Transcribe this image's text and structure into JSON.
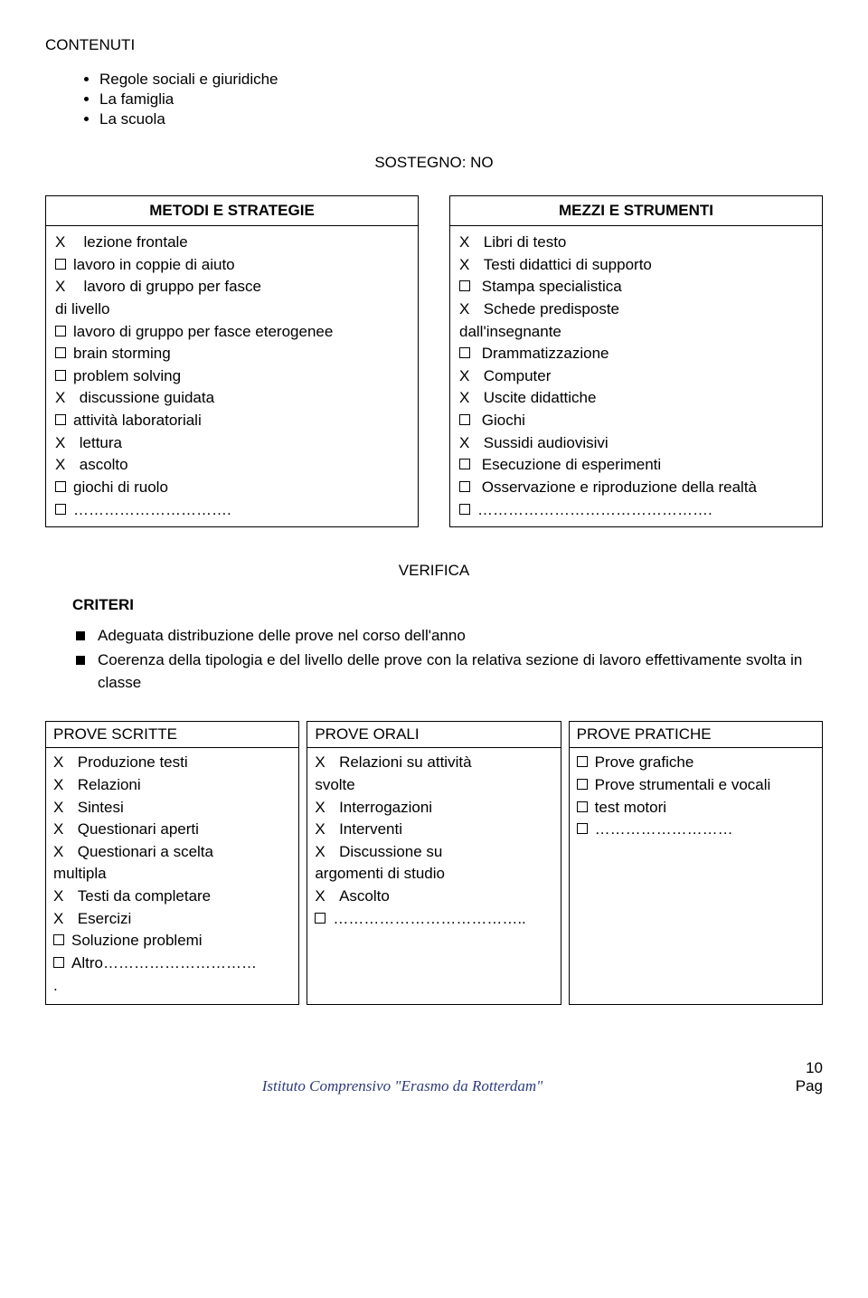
{
  "heading": "CONTENUTI",
  "bullets": [
    "Regole sociali e giuridiche",
    "La famiglia",
    "La scuola"
  ],
  "sostegno": "SOSTEGNO: NO",
  "leftBox": {
    "header": "METODI E STRATEGIE",
    "items": [
      {
        "mark": "X",
        "text": "  lezione frontale"
      },
      {
        "mark": "sq",
        "text": "lavoro in coppie di aiuto"
      },
      {
        "mark": "X",
        "text": "  lavoro di gruppo per fasce"
      },
      {
        "mark": "",
        "text": "di livello"
      },
      {
        "mark": "sq",
        "text": "lavoro di gruppo per fasce eterogenee"
      },
      {
        "mark": "sq",
        "text": "brain storming"
      },
      {
        "mark": "sq",
        "text": "problem solving"
      },
      {
        "mark": "X",
        "text": " discussione guidata"
      },
      {
        "mark": "sq",
        "text": "attività laboratoriali"
      },
      {
        "mark": "X",
        "text": " lettura"
      },
      {
        "mark": "X",
        "text": " ascolto"
      },
      {
        "mark": "sq",
        "text": "giochi di ruolo"
      },
      {
        "mark": "sq",
        "text": "…………………………."
      }
    ]
  },
  "rightBox": {
    "header": "MEZZI E STRUMENTI",
    "items": [
      {
        "mark": "X",
        "text": " Libri di testo"
      },
      {
        "mark": "X",
        "text": " Testi didattici di supporto"
      },
      {
        "mark": "sq",
        "text": " Stampa specialistica"
      },
      {
        "mark": "X",
        "text": " Schede predisposte"
      },
      {
        "mark": "",
        "text": "dall'insegnante"
      },
      {
        "mark": "sq",
        "text": " Drammatizzazione"
      },
      {
        "mark": "X",
        "text": " Computer"
      },
      {
        "mark": "X",
        "text": " Uscite didattiche"
      },
      {
        "mark": "sq",
        "text": " Giochi"
      },
      {
        "mark": "X",
        "text": " Sussidi audiovisivi"
      },
      {
        "mark": "sq",
        "text": " Esecuzione di esperimenti"
      },
      {
        "mark": "sq",
        "text": " Osservazione e riproduzione della realtà"
      },
      {
        "mark": "sq",
        "text": "………………………………………."
      }
    ]
  },
  "verifica": "VERIFICA",
  "criteriLabel": "CRITERI",
  "criteri": [
    "Adeguata distribuzione delle prove nel corso dell'anno",
    "Coerenza della tipologia e del livello delle prove con la relativa sezione di lavoro effettivamente svolta in classe"
  ],
  "col1": {
    "header": "PROVE SCRITTE",
    "items": [
      {
        "mark": "X",
        "text": " Produzione testi"
      },
      {
        "mark": "X",
        "text": " Relazioni"
      },
      {
        "mark": "X",
        "text": " Sintesi"
      },
      {
        "mark": "X",
        "text": " Questionari aperti"
      },
      {
        "mark": "X",
        "text": " Questionari a scelta"
      },
      {
        "mark": "",
        "text": "multipla"
      },
      {
        "mark": "X",
        "text": " Testi da completare"
      },
      {
        "mark": "X",
        "text": " Esercizi"
      },
      {
        "mark": "sq",
        "text": "Soluzione problemi"
      },
      {
        "mark": "sq",
        "text": "Altro…………………………"
      },
      {
        "mark": "",
        "text": "."
      }
    ]
  },
  "col2": {
    "header": "PROVE ORALI",
    "items": [
      {
        "mark": "X",
        "text": " Relazioni su attività"
      },
      {
        "mark": "",
        "text": "svolte"
      },
      {
        "mark": "X",
        "text": " Interrogazioni"
      },
      {
        "mark": "X",
        "text": " Interventi"
      },
      {
        "mark": "X",
        "text": " Discussione su"
      },
      {
        "mark": "",
        "text": "argomenti di studio"
      },
      {
        "mark": "X",
        "text": " Ascolto"
      },
      {
        "mark": "sq",
        "text": "……………………………….."
      }
    ]
  },
  "col3": {
    "header": "PROVE PRATICHE",
    "items": [
      {
        "mark": "sq",
        "text": "Prove grafiche"
      },
      {
        "mark": "sq",
        "text": "Prove strumentali e vocali"
      },
      {
        "mark": "sq",
        "text": "test motori"
      },
      {
        "mark": "sq",
        "text": "………………………"
      }
    ]
  },
  "footer": {
    "center": "Istituto Comprensivo \"Erasmo da Rotterdam\"",
    "pageNum": "10",
    "pageLabel": "Pag"
  }
}
